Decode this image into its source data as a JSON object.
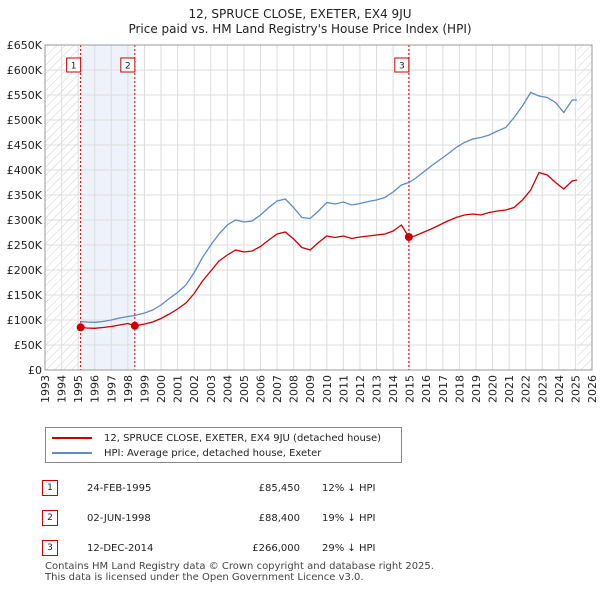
{
  "chart_data": {
    "type": "line",
    "title": "12, SPRUCE CLOSE, EXETER, EX4 9JU",
    "subtitle": "Price paid vs. HM Land Registry's House Price Index (HPI)",
    "xlim": [
      1993,
      2026
    ],
    "ylim": [
      0,
      650000
    ],
    "x_ticks": [
      "1993",
      "1994",
      "1995",
      "1996",
      "1997",
      "1998",
      "1999",
      "2000",
      "2001",
      "2002",
      "2003",
      "2004",
      "2005",
      "2006",
      "2007",
      "2008",
      "2009",
      "2010",
      "2011",
      "2012",
      "2013",
      "2014",
      "2015",
      "2016",
      "2017",
      "2018",
      "2019",
      "2020",
      "2021",
      "2022",
      "2023",
      "2024",
      "2025",
      "2026"
    ],
    "y_ticks": [
      {
        "value": 0,
        "label": "£0"
      },
      {
        "value": 50000,
        "label": "£50K"
      },
      {
        "value": 100000,
        "label": "£100K"
      },
      {
        "value": 150000,
        "label": "£150K"
      },
      {
        "value": 200000,
        "label": "£200K"
      },
      {
        "value": 250000,
        "label": "£250K"
      },
      {
        "value": 300000,
        "label": "£300K"
      },
      {
        "value": 350000,
        "label": "£350K"
      },
      {
        "value": 400000,
        "label": "£400K"
      },
      {
        "value": 450000,
        "label": "£450K"
      },
      {
        "value": 500000,
        "label": "£500K"
      },
      {
        "value": 550000,
        "label": "£550K"
      },
      {
        "value": 600000,
        "label": "£600K"
      },
      {
        "value": 650000,
        "label": "£650K"
      }
    ],
    "series": [
      {
        "name": "12, SPRUCE CLOSE, EXETER, EX4 9JU (detached house)",
        "color": "#cc0000",
        "x": [
          1995.15,
          1995.5,
          1996,
          1996.5,
          1997,
          1997.5,
          1998,
          1998.42,
          1999,
          1999.5,
          2000,
          2000.5,
          2001,
          2001.5,
          2002,
          2002.5,
          2003,
          2003.5,
          2004,
          2004.5,
          2005,
          2005.5,
          2006,
          2006.5,
          2007,
          2007.5,
          2008,
          2008.5,
          2009,
          2009.5,
          2010,
          2010.5,
          2011,
          2011.5,
          2012,
          2012.5,
          2013,
          2013.5,
          2014,
          2014.5,
          2014.95,
          2015.3,
          2015.8,
          2016.3,
          2016.8,
          2017.3,
          2017.8,
          2018.3,
          2018.8,
          2019.3,
          2019.8,
          2020.3,
          2020.8,
          2021.3,
          2021.8,
          2022.3,
          2022.8,
          2023.3,
          2023.8,
          2024.3,
          2024.8,
          2025.1
        ],
        "y": [
          85450,
          84000,
          83500,
          85000,
          87000,
          90000,
          93000,
          88400,
          92000,
          96000,
          103000,
          112000,
          122000,
          134000,
          153000,
          178000,
          198000,
          218000,
          230000,
          240000,
          236000,
          238000,
          247000,
          260000,
          272000,
          276000,
          262000,
          245000,
          240000,
          255000,
          268000,
          265000,
          268000,
          263000,
          266000,
          268000,
          270000,
          272000,
          278000,
          290000,
          266000,
          268000,
          275000,
          282000,
          290000,
          298000,
          305000,
          310000,
          312000,
          310000,
          315000,
          318000,
          320000,
          325000,
          340000,
          360000,
          395000,
          390000,
          375000,
          362000,
          378000,
          380000
        ]
      },
      {
        "name": "HPI: Average price, detached house, Exeter",
        "color": "#5b8cc4",
        "x": [
          1995.15,
          1995.5,
          1996,
          1996.5,
          1997,
          1997.5,
          1998,
          1998.42,
          1999,
          1999.5,
          2000,
          2000.5,
          2001,
          2001.5,
          2002,
          2002.5,
          2003,
          2003.5,
          2004,
          2004.5,
          2005,
          2005.5,
          2006,
          2006.5,
          2007,
          2007.5,
          2008,
          2008.5,
          2009,
          2009.5,
          2010,
          2010.5,
          2011,
          2011.5,
          2012,
          2012.5,
          2013,
          2013.5,
          2014,
          2014.5,
          2014.95,
          2015.3,
          2015.8,
          2016.3,
          2016.8,
          2017.3,
          2017.8,
          2018.3,
          2018.8,
          2019.3,
          2019.8,
          2020.3,
          2020.8,
          2021.3,
          2021.8,
          2022.3,
          2022.8,
          2023.3,
          2023.8,
          2024.3,
          2024.8,
          2025.1
        ],
        "y": [
          97000,
          96000,
          95500,
          97000,
          100000,
          104000,
          107000,
          109000,
          114000,
          120000,
          130000,
          143000,
          155000,
          170000,
          195000,
          225000,
          250000,
          272000,
          290000,
          300000,
          296000,
          298000,
          310000,
          325000,
          338000,
          342000,
          325000,
          305000,
          303000,
          318000,
          335000,
          332000,
          336000,
          330000,
          333000,
          337000,
          340000,
          345000,
          356000,
          370000,
          375000,
          382000,
          395000,
          408000,
          420000,
          432000,
          445000,
          455000,
          462000,
          465000,
          470000,
          478000,
          485000,
          505000,
          528000,
          555000,
          548000,
          545000,
          535000,
          515000,
          540000,
          540000
        ]
      }
    ],
    "sales": [
      {
        "num": "1",
        "date": "24-FEB-1995",
        "x": 1995.15,
        "price": 85450,
        "price_label": "£85,450",
        "hpi": "12% ↓ HPI"
      },
      {
        "num": "2",
        "date": "02-JUN-1998",
        "x": 1998.42,
        "price": 88400,
        "price_label": "£88,400",
        "hpi": "19% ↓ HPI"
      },
      {
        "num": "3",
        "date": "12-DEC-2014",
        "x": 2014.95,
        "price": 266000,
        "price_label": "£266,000",
        "hpi": "29% ↓ HPI"
      }
    ]
  },
  "footer": {
    "line1": "Contains HM Land Registry data © Crown copyright and database right 2025.",
    "line2": "This data is licensed under the Open Government Licence v3.0."
  },
  "colors": {
    "property": "#cc0000",
    "hpi": "#5b8cc4",
    "grid": "#dddddd",
    "shade": "#eef2fb"
  }
}
